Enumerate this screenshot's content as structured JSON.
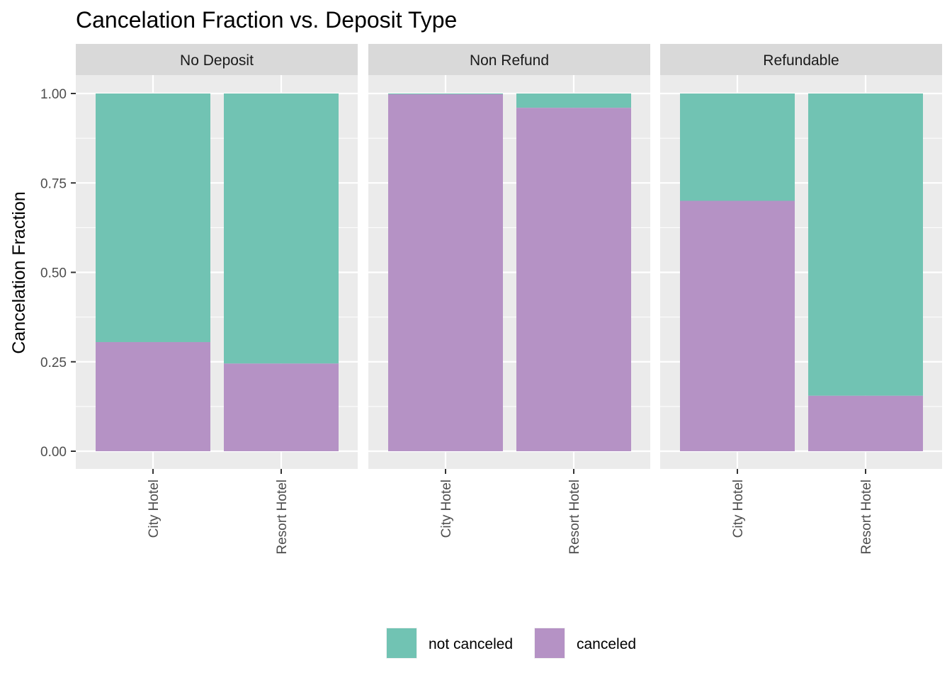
{
  "chart_data": {
    "type": "bar",
    "stacked": true,
    "title": "Cancelation Fraction vs. Deposit Type",
    "ylabel": "Cancelation Fraction",
    "xlabel": "",
    "ylim": [
      0,
      1.05
    ],
    "yticks": [
      "0.00",
      "0.25",
      "0.50",
      "0.75",
      "1.00"
    ],
    "ytick_values": [
      0,
      0.25,
      0.5,
      0.75,
      1.0
    ],
    "categories": [
      "City Hotel",
      "Resort Hotel"
    ],
    "legend_position": "bottom",
    "colors": {
      "not_canceled": "#71c3b3",
      "canceled": "#b592c5"
    },
    "legend": [
      {
        "key": "not_canceled",
        "label": "not canceled"
      },
      {
        "key": "canceled",
        "label": "canceled"
      }
    ],
    "facets": [
      {
        "name": "No Deposit",
        "series": [
          {
            "name": "canceled",
            "values": [
              0.305,
              0.245
            ]
          },
          {
            "name": "not canceled",
            "values": [
              0.695,
              0.755
            ]
          }
        ]
      },
      {
        "name": "Non Refund",
        "series": [
          {
            "name": "canceled",
            "values": [
              0.998,
              0.96
            ]
          },
          {
            "name": "not canceled",
            "values": [
              0.002,
              0.04
            ]
          }
        ]
      },
      {
        "name": "Refundable",
        "series": [
          {
            "name": "canceled",
            "values": [
              0.7,
              0.155
            ]
          },
          {
            "name": "not canceled",
            "values": [
              0.3,
              0.845
            ]
          }
        ]
      }
    ]
  }
}
